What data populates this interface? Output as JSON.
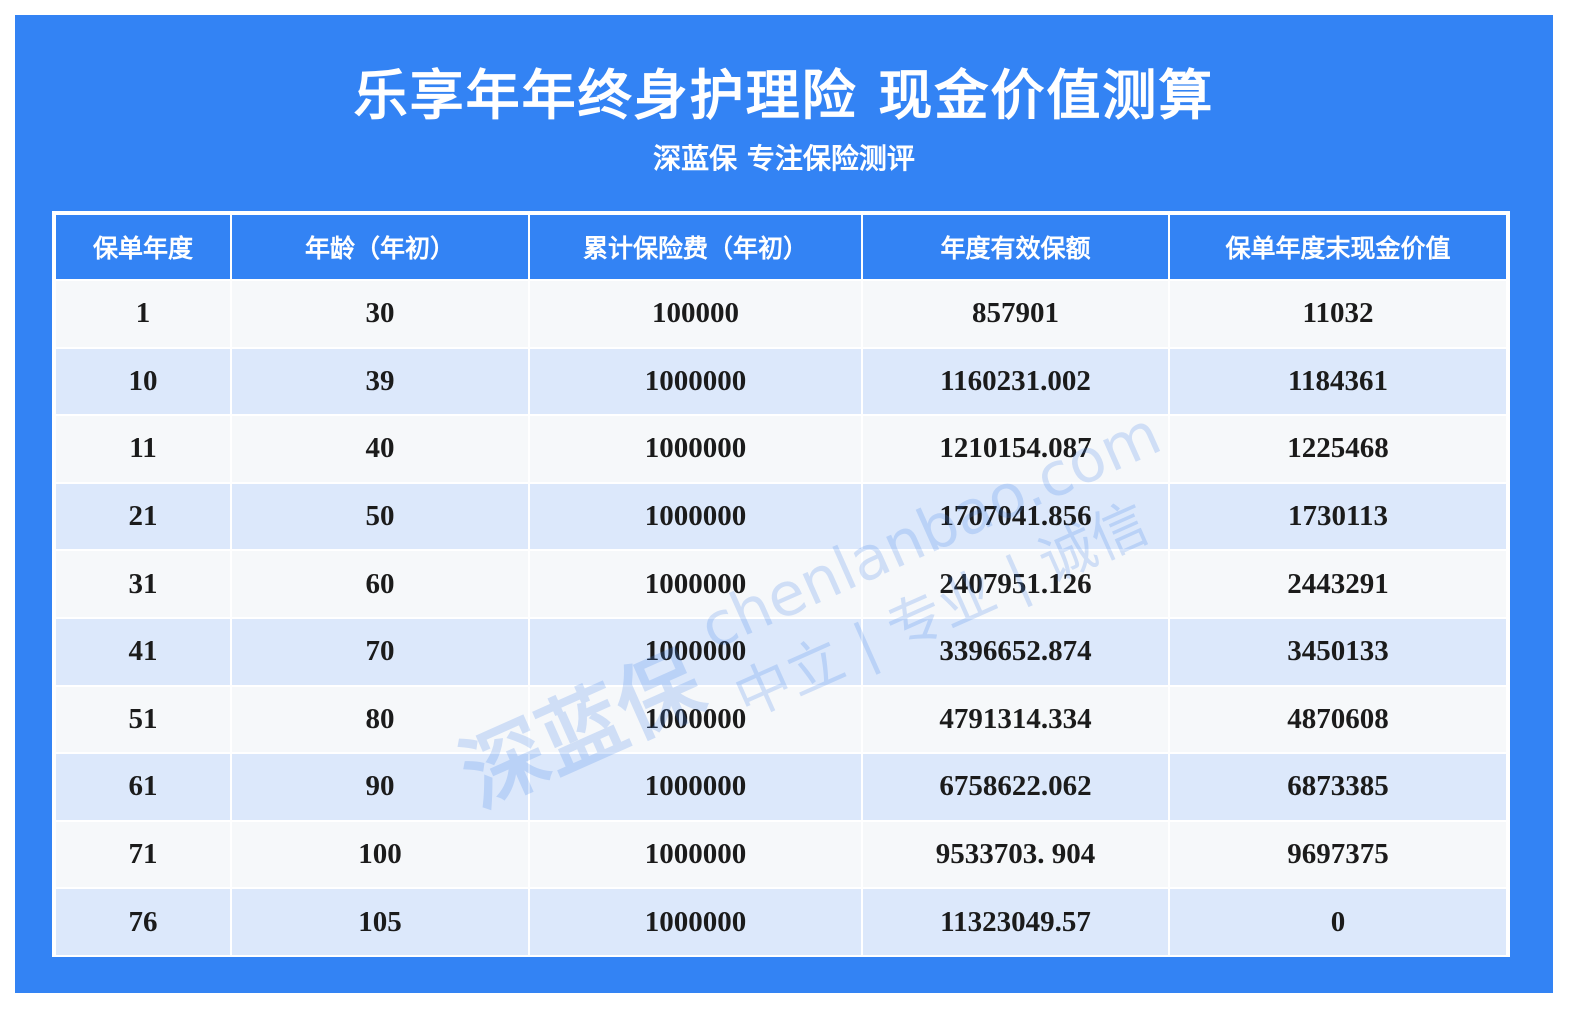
{
  "header": {
    "title": "乐享年年终身护理险 现金价值测算",
    "subtitle": "深蓝保 专注保险测评"
  },
  "table": {
    "columns": [
      "保单年度",
      "年龄（年初）",
      "累计保险费（年初）",
      "年度有效保额",
      "保单年度末现金价值"
    ],
    "rows": [
      [
        "1",
        "30",
        "100000",
        "857901",
        "11032"
      ],
      [
        "10",
        "39",
        "1000000",
        "1160231.002",
        "1184361"
      ],
      [
        "11",
        "40",
        "1000000",
        "1210154.087",
        "1225468"
      ],
      [
        "21",
        "50",
        "1000000",
        "1707041.856",
        "1730113"
      ],
      [
        "31",
        "60",
        "1000000",
        "2407951.126",
        "2443291"
      ],
      [
        "41",
        "70",
        "1000000",
        "3396652.874",
        "3450133"
      ],
      [
        "51",
        "80",
        "1000000",
        "4791314.334",
        "4870608"
      ],
      [
        "61",
        "90",
        "1000000",
        "6758622.062",
        "6873385"
      ],
      [
        "71",
        "100",
        "1000000",
        "9533703. 904",
        "9697375"
      ],
      [
        "76",
        "105",
        "1000000",
        "11323049.57",
        "0"
      ]
    ]
  },
  "watermark": {
    "logo": "深蓝保",
    "site": "chenlanbao.com",
    "slogan": "中立 | 专业 | 诚信"
  }
}
